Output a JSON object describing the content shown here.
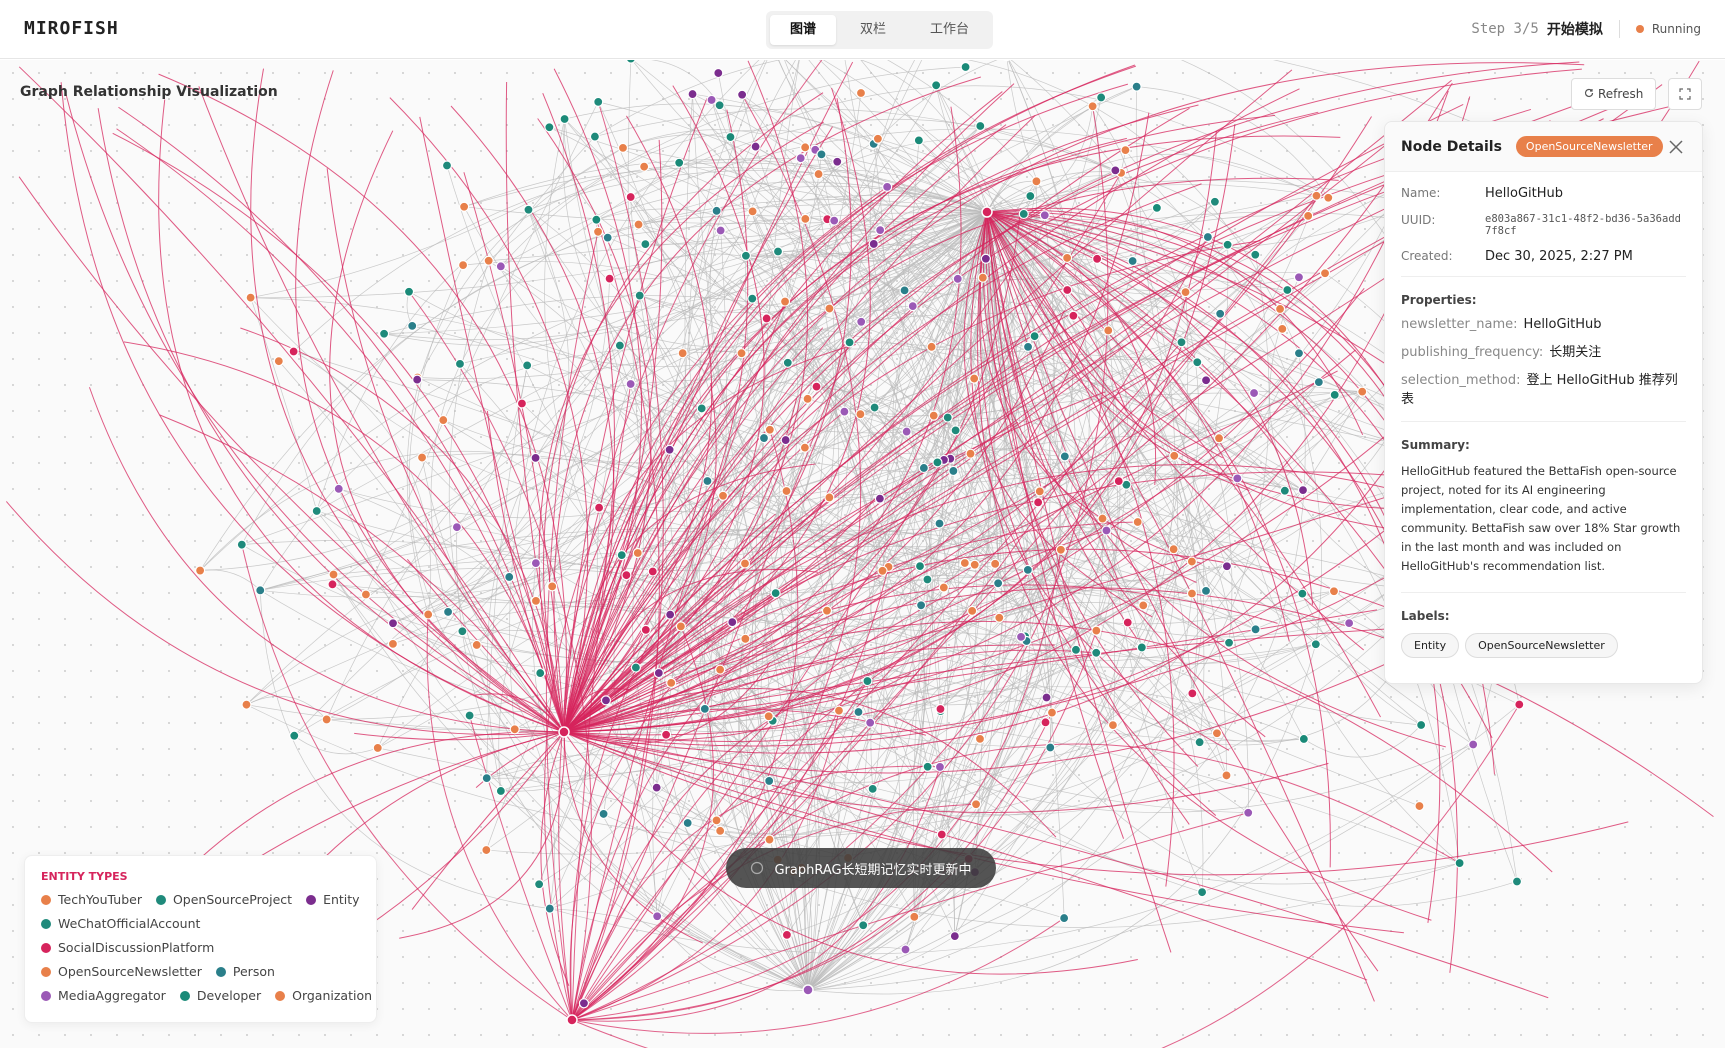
{
  "header": {
    "brand": "MIROFISH",
    "tabs": [
      "图谱",
      "双栏",
      "工作台"
    ],
    "step": "Step 3/5",
    "step_title": "开始模拟",
    "status": "Running"
  },
  "graph": {
    "title": "Graph Relationship Visualization",
    "refresh": "Refresh",
    "status_banner": "GraphRAG长短期记忆实时更新中"
  },
  "details": {
    "title": "Node Details",
    "badge": "OpenSourceNewsletter",
    "fields": [
      {
        "label": "Name:",
        "value": "HelloGitHub"
      },
      {
        "label": "UUID:",
        "value": "e803a867-31c1-48f2-bd36-5a36add7f8cf"
      },
      {
        "label": "Created:",
        "value": "Dec 30, 2025, 2:27 PM"
      }
    ],
    "properties_title": "Properties:",
    "properties": [
      {
        "key": "newsletter_name:",
        "value": "HelloGitHub"
      },
      {
        "key": "publishing_frequency:",
        "value": "长期关注"
      },
      {
        "key": "selection_method:",
        "value": "登上 HelloGitHub 推荐列表"
      }
    ],
    "summary_title": "Summary:",
    "summary": "HelloGitHub featured the BettaFish open-source project, noted for its AI engineering implementation, clear code, and active community. BettaFish saw over 18% Star growth in the last month and was included on HelloGitHub's recommendation list.",
    "labels_title": "Labels:",
    "labels": [
      "Entity",
      "OpenSourceNewsletter"
    ]
  },
  "legend": {
    "title": "ENTITY TYPES",
    "rows": [
      [
        {
          "name": "TechYouTuber",
          "color": "#e8804a"
        },
        {
          "name": "OpenSourceProject",
          "color": "#1f8a7b"
        },
        {
          "name": "Entity",
          "color": "#7b2d8e"
        }
      ],
      [
        {
          "name": "WeChatOfficialAccount",
          "color": "#1f8a7b"
        }
      ],
      [
        {
          "name": "SocialDiscussionPlatform",
          "color": "#d6245c"
        }
      ],
      [
        {
          "name": "OpenSourceNewsletter",
          "color": "#e8804a"
        },
        {
          "name": "Person",
          "color": "#2a7f8a"
        }
      ],
      [
        {
          "name": "MediaAggregator",
          "color": "#9b59b6"
        },
        {
          "name": "Developer",
          "color": "#1a8a78"
        },
        {
          "name": "Organization",
          "color": "#e8804a"
        }
      ]
    ]
  }
}
